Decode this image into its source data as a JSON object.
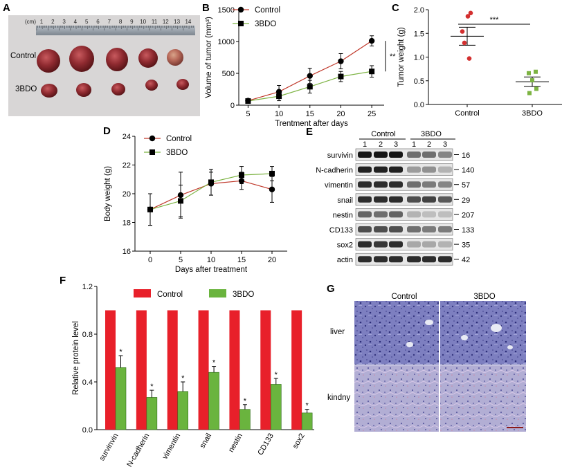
{
  "panel_letters": {
    "a": "A",
    "b": "B",
    "c": "C",
    "d": "D",
    "e": "E",
    "f": "F",
    "g": "G"
  },
  "panel_a": {
    "ruler_unit": "(cm)",
    "ruler_numbers": [
      "1",
      "2",
      "3",
      "4",
      "5",
      "6",
      "7",
      "8",
      "9",
      "10",
      "11",
      "12",
      "13",
      "14"
    ],
    "row_labels": [
      "Control",
      "3BDO"
    ]
  },
  "chart_data": [
    {
      "id": "B",
      "type": "line",
      "xlabel": "Trentment after days",
      "ylabel": "Volume of tumor (mm³)",
      "x": [
        5,
        10,
        15,
        20,
        25
      ],
      "xticks": [
        "5",
        "10",
        "15",
        "20",
        "25"
      ],
      "yticks": [
        "0",
        "500",
        "1000",
        "1500"
      ],
      "xlim": [
        3.5,
        27
      ],
      "ylim": [
        0,
        1500
      ],
      "series": [
        {
          "name": "Control",
          "marker": "circle",
          "color": "#c0392b",
          "values": [
            70,
            210,
            460,
            690,
            1010
          ],
          "errors": [
            30,
            100,
            120,
            120,
            80
          ]
        },
        {
          "name": "3BDO",
          "marker": "square",
          "color": "#7cb342",
          "values": [
            65,
            140,
            290,
            450,
            530
          ],
          "errors": [
            20,
            70,
            100,
            80,
            90
          ]
        }
      ],
      "significance": "**"
    },
    {
      "id": "C",
      "type": "scatter",
      "ylabel": "Tumor weight (g)",
      "categories": [
        "Control",
        "3BDO"
      ],
      "yticks": [
        "0.0",
        "0.5",
        "1.0",
        "1.5",
        "2.0"
      ],
      "ylim": [
        0,
        2.0
      ],
      "groups": [
        {
          "name": "Control",
          "color": "#d32f2f",
          "points": [
            1.93,
            1.86,
            1.54,
            1.3,
            0.97
          ],
          "mean": 1.44,
          "sem": 0.19
        },
        {
          "name": "3BDO",
          "color": "#7cb342",
          "points": [
            0.69,
            0.66,
            0.51,
            0.33,
            0.24
          ],
          "mean": 0.48,
          "sem": 0.1
        }
      ],
      "significance": "***"
    },
    {
      "id": "D",
      "type": "line",
      "xlabel": "Days after treatment",
      "ylabel": "Body weight (g)",
      "x": [
        0,
        5,
        10,
        15,
        20
      ],
      "xticks": [
        "0",
        "5",
        "10",
        "15",
        "20"
      ],
      "yticks": [
        "16",
        "18",
        "20",
        "22",
        "24"
      ],
      "xlim": [
        -2.5,
        22.5
      ],
      "ylim": [
        16,
        24
      ],
      "series": [
        {
          "name": "Control",
          "marker": "circle",
          "color": "#c0392b",
          "values": [
            18.9,
            19.9,
            20.7,
            20.9,
            20.3
          ],
          "errors": [
            1.1,
            1.6,
            0.8,
            0.6,
            0.9
          ]
        },
        {
          "name": "3BDO",
          "marker": "square",
          "color": "#7cb342",
          "values": [
            18.9,
            19.5,
            20.8,
            21.3,
            21.4
          ],
          "errors": [
            1.1,
            1.1,
            0.9,
            0.6,
            0.5
          ]
        }
      ]
    },
    {
      "id": "F",
      "type": "bar",
      "ylabel": "Relative protein level",
      "categories": [
        "survinvin",
        "N-cadherin",
        "vimentin",
        "snail",
        "nestin",
        "CD133",
        "sox2"
      ],
      "yticks": [
        "0.0",
        "0.4",
        "0.8",
        "1.2"
      ],
      "ylim": [
        0,
        1.2
      ],
      "series": [
        {
          "name": "Control",
          "color": "#e8202a",
          "values": [
            1,
            1,
            1,
            1,
            1,
            1,
            1
          ]
        },
        {
          "name": "3BDO",
          "color": "#6ab43e",
          "values": [
            0.52,
            0.27,
            0.32,
            0.48,
            0.17,
            0.38,
            0.14
          ],
          "errors": [
            0.1,
            0.06,
            0.08,
            0.05,
            0.04,
            0.05,
            0.03
          ]
        }
      ],
      "significance": [
        "*",
        "*",
        "*",
        "*",
        "*",
        "*",
        "*"
      ]
    }
  ],
  "panel_e": {
    "group_labels": [
      "Control",
      "3BDO"
    ],
    "lane_numbers": [
      "1",
      "2",
      "3",
      "1",
      "2",
      "3"
    ],
    "rows": [
      {
        "protein": "survivin",
        "kda": "16",
        "intensity": [
          0.95,
          0.95,
          0.95,
          0.55,
          0.55,
          0.45
        ]
      },
      {
        "protein": "N-cadherin",
        "kda": "140",
        "intensity": [
          0.9,
          0.9,
          0.9,
          0.35,
          0.4,
          0.25
        ]
      },
      {
        "protein": "vimentin",
        "kda": "57",
        "intensity": [
          0.85,
          0.85,
          0.85,
          0.55,
          0.5,
          0.45
        ]
      },
      {
        "protein": "snail",
        "kda": "29",
        "intensity": [
          0.85,
          0.85,
          0.85,
          0.7,
          0.75,
          0.65
        ]
      },
      {
        "protein": "nestin",
        "kda": "207",
        "intensity": [
          0.6,
          0.55,
          0.6,
          0.25,
          0.2,
          0.2
        ]
      },
      {
        "protein": "CD133",
        "kda": "133",
        "intensity": [
          0.7,
          0.7,
          0.7,
          0.55,
          0.5,
          0.5
        ]
      },
      {
        "protein": "sox2",
        "kda": "35",
        "intensity": [
          0.85,
          0.8,
          0.85,
          0.3,
          0.3,
          0.25
        ]
      },
      {
        "protein": "actin",
        "kda": "42",
        "intensity": [
          0.85,
          0.85,
          0.85,
          0.85,
          0.85,
          0.85
        ]
      }
    ]
  },
  "panel_g": {
    "column_labels": [
      "Control",
      "3BDO"
    ],
    "row_labels": [
      "liver",
      "kindny"
    ]
  }
}
